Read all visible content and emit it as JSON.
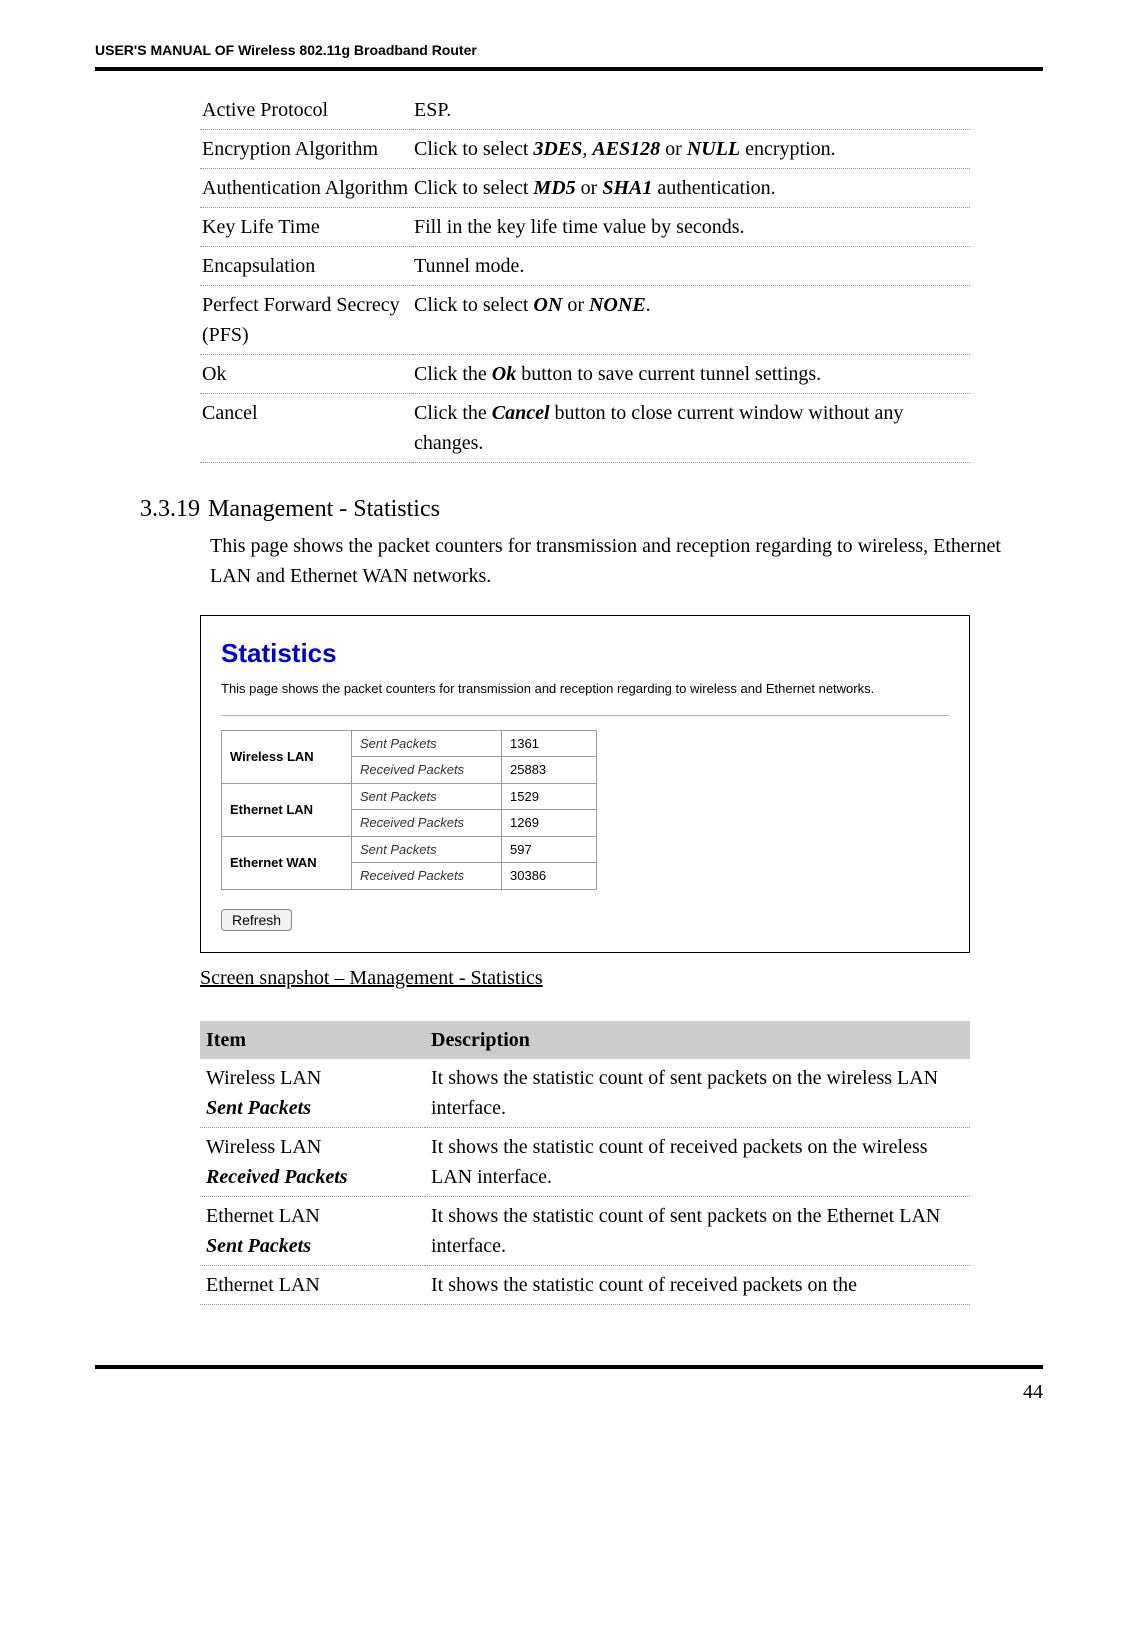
{
  "header": {
    "text": "USER'S MANUAL OF Wireless 802.11g Broadband Router"
  },
  "defs": {
    "rows": [
      {
        "label": "Active Protocol",
        "desc_pre": "ESP.",
        "bi": "",
        "desc_post": ""
      },
      {
        "label": "Encryption Algorithm",
        "desc_pre": "Click to select ",
        "bi": "3DES",
        "mid1": ", ",
        "bi2": "AES128",
        "mid2": " or ",
        "bi3": "NULL",
        "desc_post": " encryption."
      },
      {
        "label": "Authentication Algorithm",
        "desc_pre": "Click to select ",
        "bi": "MD5",
        "mid1": " or ",
        "bi2": "SHA1",
        "desc_post": " authentication."
      },
      {
        "label": "Key Life Time",
        "desc_pre": "Fill in the key life time value by seconds.",
        "bi": "",
        "desc_post": ""
      },
      {
        "label": "Encapsulation",
        "desc_pre": "Tunnel mode.",
        "bi": "",
        "desc_post": ""
      },
      {
        "label": "Perfect Forward Secrecy (PFS)",
        "desc_pre": "Click to select ",
        "bi": "ON",
        "mid1": " or ",
        "bi2": "NONE",
        "desc_post": "."
      },
      {
        "label": "Ok",
        "desc_pre": "Click the ",
        "bi": "Ok",
        "desc_post": " button to save current tunnel settings."
      },
      {
        "label": "Cancel",
        "desc_pre": "Click the ",
        "bi": "Cancel",
        "desc_post": " button to close current window without any changes."
      }
    ]
  },
  "section": {
    "number": "3.3.19",
    "title": "Management - Statistics",
    "body": "This page shows the packet counters for transmission and reception regarding to wireless, Ethernet LAN and Ethernet WAN networks."
  },
  "screenshot": {
    "title": "Statistics",
    "caption": "This page shows the packet counters for transmission and reception regarding to wireless and Ethernet networks.",
    "metric_sent": "Sent Packets",
    "metric_recv": "Received Packets",
    "groups": [
      {
        "label": "Wireless LAN",
        "sent": "1361",
        "recv": "25883"
      },
      {
        "label": "Ethernet LAN",
        "sent": "1529",
        "recv": "1269"
      },
      {
        "label": "Ethernet WAN",
        "sent": "597",
        "recv": "30386"
      }
    ],
    "refresh_label": "Refresh",
    "colors": {
      "title": "#0000cc",
      "border": "#9a9a9a"
    }
  },
  "screenshot_caption": "Screen snapshot – Management - Statistics",
  "desc_table": {
    "headers": {
      "item": "Item",
      "description": "Description"
    },
    "rows": [
      {
        "label_plain": "Wireless LAN",
        "label_bi": "Sent Packets",
        "desc": "It shows the statistic count of sent packets on the wireless LAN interface."
      },
      {
        "label_plain": "Wireless LAN",
        "label_bi": "Received Packets",
        "desc": "It shows the statistic count of received packets on the wireless LAN interface."
      },
      {
        "label_plain": "Ethernet LAN",
        "label_bi": "Sent Packets",
        "desc": "It shows the statistic count of sent packets on the Ethernet LAN interface."
      },
      {
        "label_plain": "Ethernet LAN",
        "label_bi": "",
        "desc": "It shows the statistic count of received packets on the"
      }
    ]
  },
  "page_number": "44"
}
